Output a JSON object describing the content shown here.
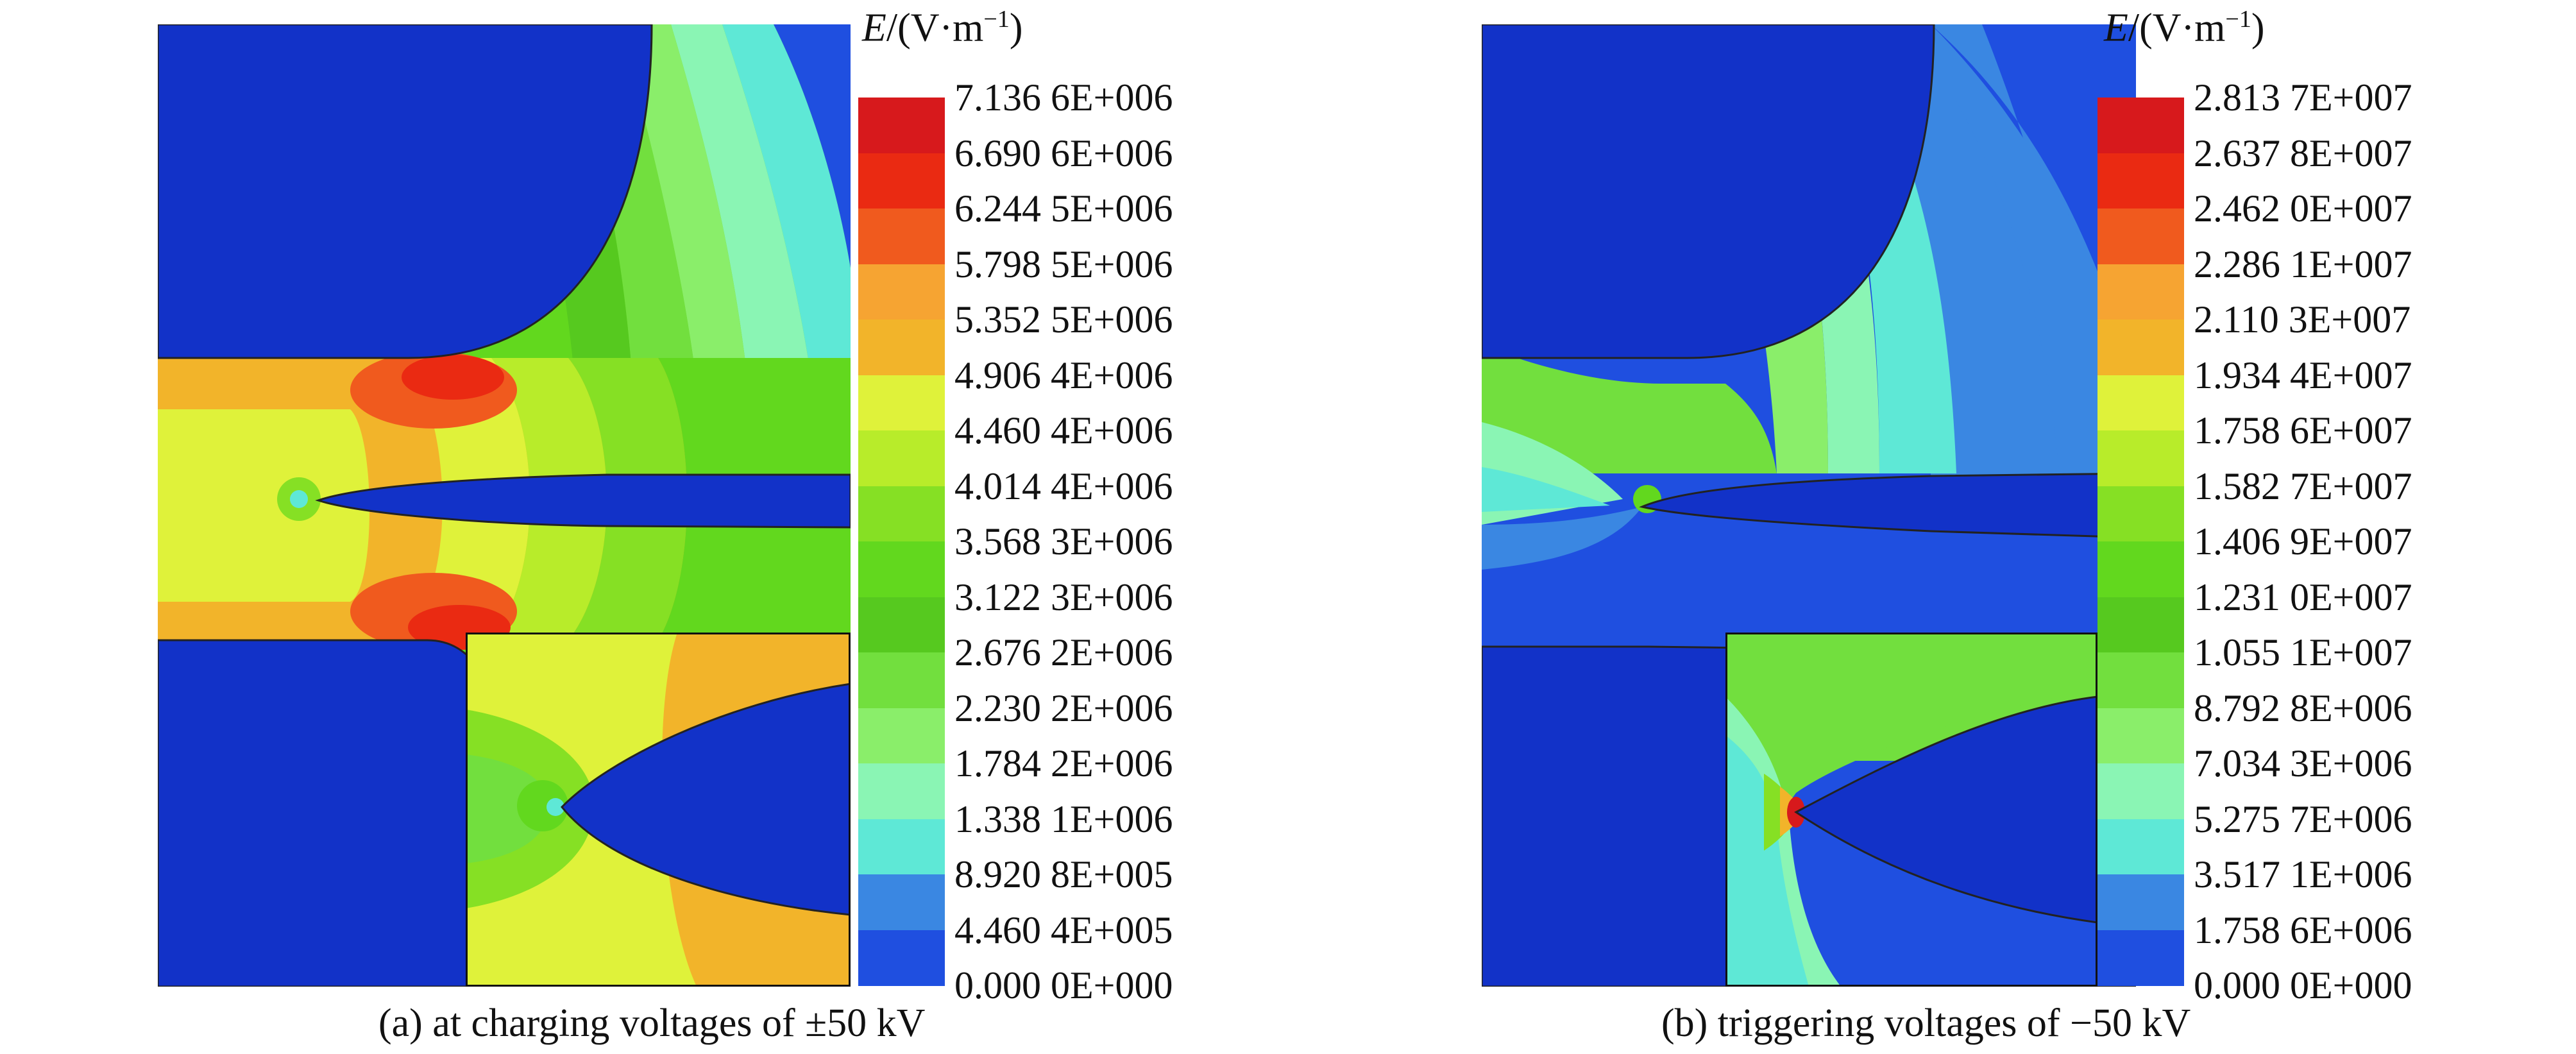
{
  "panels": [
    {
      "id": "a",
      "caption": "(a) at charging voltages of ±50 kV",
      "legend_title": {
        "symbol": "E",
        "unit_prefix": "/(V·m",
        "exponent": "−1",
        "unit_suffix": ")"
      },
      "legend_values": [
        "7.136 6E+006",
        "6.690 6E+006",
        "6.244 5E+006",
        "5.798 5E+006",
        "5.352 5E+006",
        "4.906 4E+006",
        "4.460 4E+006",
        "4.014 4E+006",
        "3.568 3E+006",
        "3.122 3E+006",
        "2.676 2E+006",
        "2.230 2E+006",
        "1.784 2E+006",
        "1.338 1E+006",
        "8.920 8E+005",
        "4.460 4E+005",
        "0.000 0E+000"
      ]
    },
    {
      "id": "b",
      "caption": "(b) triggering voltages of −50 kV",
      "legend_title": {
        "symbol": "E",
        "unit_prefix": "/(V·m",
        "exponent": "−1",
        "unit_suffix": ")"
      },
      "legend_values": [
        "2.813 7E+007",
        "2.637 8E+007",
        "2.462 0E+007",
        "2.286 1E+007",
        "2.110 3E+007",
        "1.934 4E+007",
        "1.758 6E+007",
        "1.582 7E+007",
        "1.406 9E+007",
        "1.231 0E+007",
        "1.055 1E+007",
        "8.792 8E+006",
        "7.034 3E+006",
        "5.275 7E+006",
        "3.517 1E+006",
        "1.758 6E+006",
        "0.000 0E+000"
      ]
    }
  ],
  "colormap": [
    "#d7191c",
    "#ea2a12",
    "#f05a1e",
    "#f6a432",
    "#f2b42a",
    "#dff23a",
    "#b8ec2a",
    "#86e024",
    "#62d81e",
    "#56c91f",
    "#72df3e",
    "#8aee6a",
    "#8af5b4",
    "#5ee8d6",
    "#3a87e2",
    "#1f4fe0",
    "#1232c8"
  ]
}
